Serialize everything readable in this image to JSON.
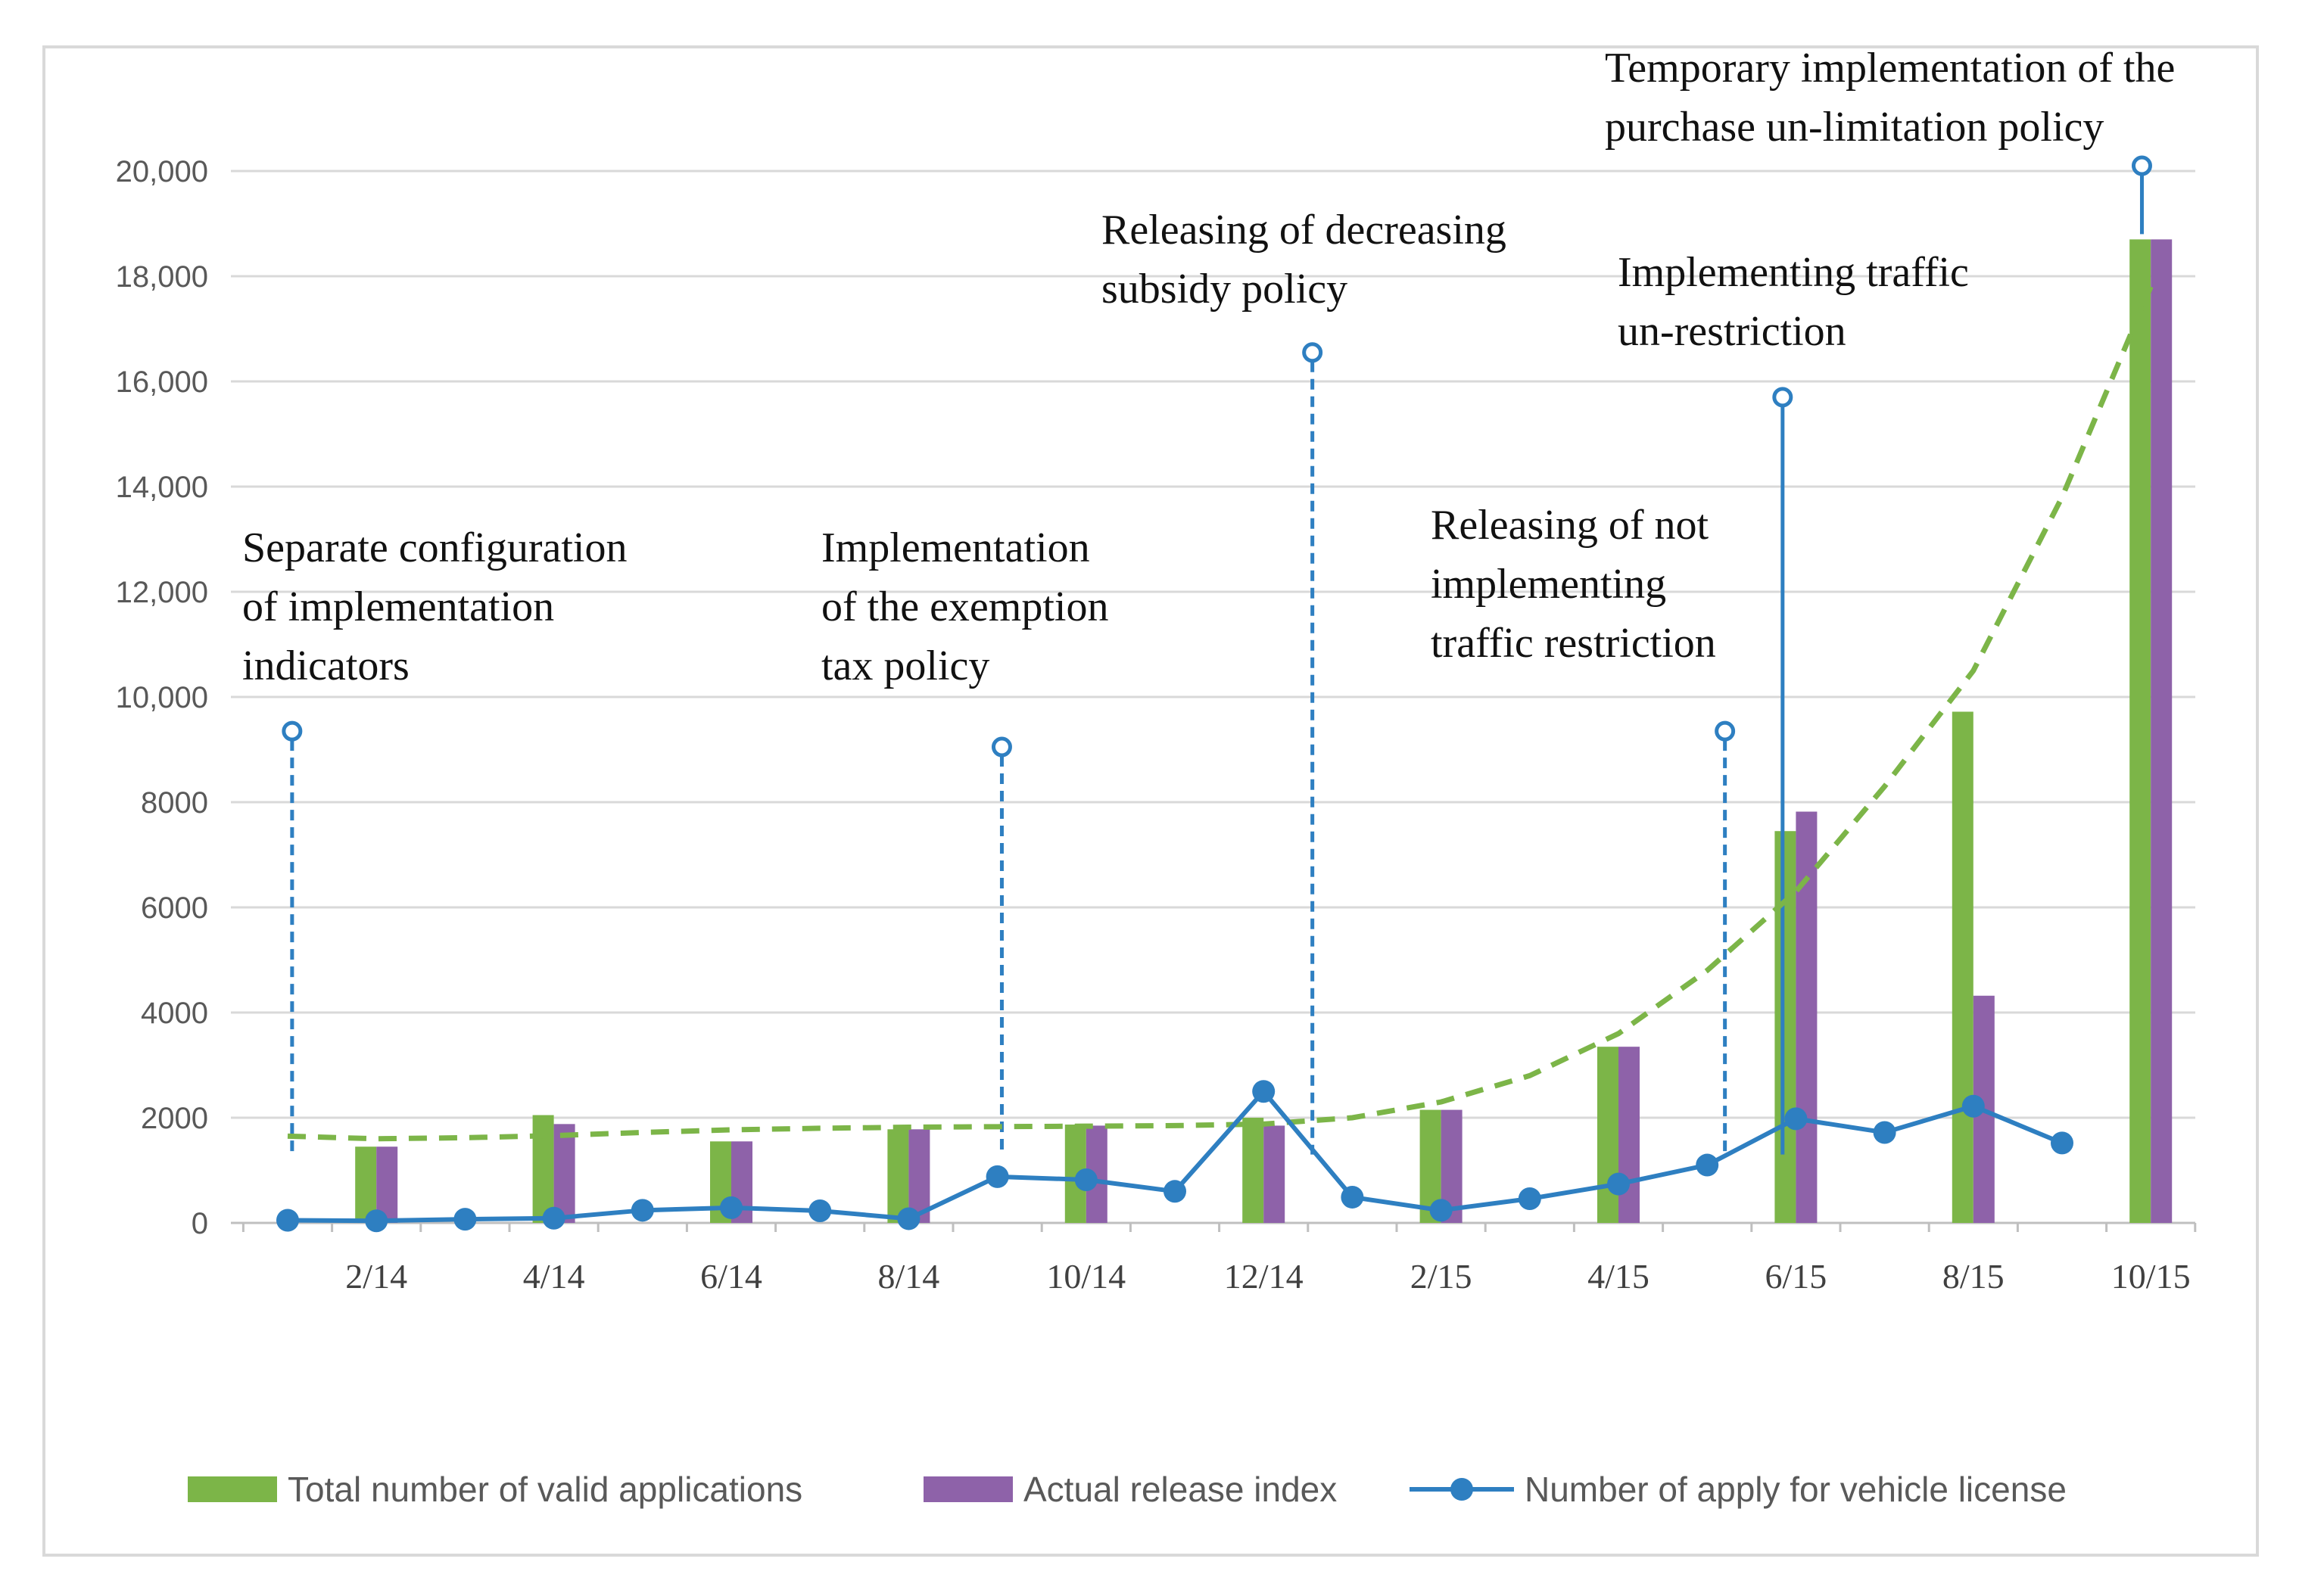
{
  "chart_data": {
    "type": "bar",
    "x": [
      "1/14",
      "2/14",
      "3/14",
      "4/14",
      "5/14",
      "6/14",
      "7/14",
      "8/14",
      "9/14",
      "10/14",
      "11/14",
      "12/14",
      "1/15",
      "2/15",
      "3/15",
      "4/15",
      "5/15",
      "6/15",
      "7/15",
      "8/15",
      "9/15",
      "10/15"
    ],
    "x_tick_labels": [
      "2/14",
      "4/14",
      "6/14",
      "8/14",
      "10/14",
      "12/14",
      "2/15",
      "4/15",
      "6/15",
      "8/15",
      "10/15"
    ],
    "y_tick_labels": [
      "0",
      "2000",
      "4000",
      "6000",
      "8000",
      "10,000",
      "12,000",
      "14,000",
      "16,000",
      "18,000",
      "20,000"
    ],
    "ylim": [
      0,
      20000
    ],
    "grid": true,
    "legend_position": "bottom",
    "series": [
      {
        "name": "Total number of valid applications",
        "kind": "bar",
        "color": "#7cb548",
        "values": [
          null,
          1450,
          null,
          2050,
          null,
          1550,
          null,
          1780,
          null,
          1870,
          null,
          2000,
          null,
          2150,
          null,
          3350,
          null,
          7450,
          null,
          9720,
          null,
          18700
        ]
      },
      {
        "name": "Actual release index",
        "kind": "bar",
        "color": "#8e62a9",
        "values": [
          null,
          1450,
          null,
          1880,
          null,
          1550,
          null,
          1780,
          null,
          1850,
          null,
          1850,
          null,
          2150,
          null,
          3350,
          null,
          7820,
          null,
          4320,
          null,
          18700
        ]
      },
      {
        "name": "Number of apply for vehicle license",
        "kind": "line-marker",
        "color": "#2e7fc1",
        "values": [
          50,
          40,
          70,
          90,
          240,
          290,
          230,
          80,
          880,
          820,
          600,
          2500,
          490,
          240,
          460,
          740,
          1100,
          1980,
          1720,
          2220,
          1520,
          null
        ]
      },
      {
        "name": "trend",
        "kind": "dashed-trend",
        "color": "#7cb548",
        "values": [
          1650,
          1600,
          1620,
          1660,
          1720,
          1770,
          1800,
          1820,
          1830,
          1840,
          1850,
          1880,
          2000,
          2300,
          2800,
          3600,
          4800,
          6300,
          8300,
          10500,
          13800,
          17800
        ]
      }
    ],
    "events": [
      {
        "lines": [
          "Separate configuration",
          "of implementation",
          "indicators"
        ],
        "x_index": 0.05,
        "marker_y": 9350
      },
      {
        "lines": [
          "Implementation",
          "of the exemption",
          "tax policy"
        ],
        "x_index": 8.05,
        "marker_y": 9050
      },
      {
        "lines": [
          "Releasing of decreasing",
          "subsidy policy"
        ],
        "x_index": 11.55,
        "marker_y": 16550
      },
      {
        "lines": [
          "Releasing of not",
          "implementing",
          "traffic restriction"
        ],
        "x_index": 16.2,
        "marker_y": 9350
      },
      {
        "lines": [
          "Implementing traffic",
          "un-restriction"
        ],
        "x_index": 16.85,
        "marker_y": 15700
      },
      {
        "lines": [
          "Temporary implementation of the",
          "purchase un-limitation policy"
        ],
        "x_index": 20.9,
        "marker_y": 20100
      }
    ]
  }
}
